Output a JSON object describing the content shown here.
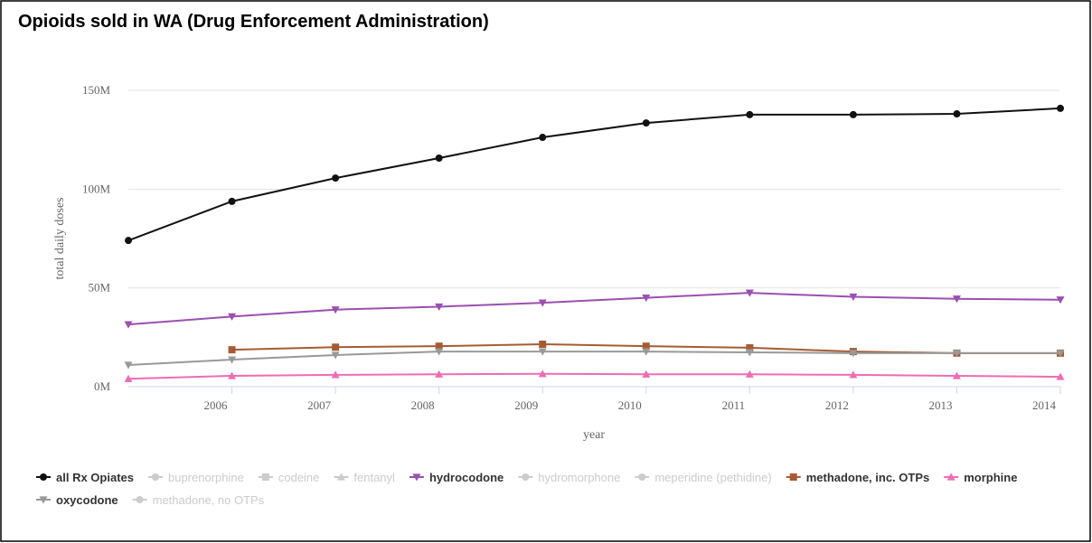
{
  "chart_data": {
    "type": "line",
    "title": "Opioids sold in WA (Drug Enforcement Administration)",
    "x_label": "year",
    "y_label": "total daily doses",
    "x": [
      2005,
      2006,
      2007,
      2008,
      2009,
      2010,
      2011,
      2012,
      2013,
      2014
    ],
    "xlim": [
      2005,
      2014
    ],
    "xticks": [
      2006,
      2007,
      2008,
      2009,
      2010,
      2011,
      2012,
      2013,
      2014
    ],
    "ylim": [
      0,
      150000000
    ],
    "yticks": [
      {
        "value": 0,
        "label": "0M"
      },
      {
        "value": 50000000,
        "label": "50M"
      },
      {
        "value": 100000000,
        "label": "100M"
      },
      {
        "value": 150000000,
        "label": "150M"
      }
    ],
    "grid": true,
    "legend": "bottom",
    "series": [
      {
        "name": "all Rx Opiates",
        "color": "#111111",
        "marker": "circle",
        "visible": true,
        "values": [
          74000000,
          93800000,
          105600000,
          115700000,
          126200000,
          133500000,
          137700000,
          137700000,
          138100000,
          140900000
        ]
      },
      {
        "name": "buprenorphine",
        "color": "#cccccc",
        "marker": "circle",
        "visible": false
      },
      {
        "name": "codeine",
        "color": "#cccccc",
        "marker": "square",
        "visible": false
      },
      {
        "name": "fentanyl",
        "color": "#cccccc",
        "marker": "triangle",
        "visible": false
      },
      {
        "name": "hydrocodone",
        "color": "#9b4fb0",
        "marker": "triangle-down",
        "visible": true,
        "values": [
          31500000,
          35500000,
          39000000,
          40500000,
          42500000,
          45000000,
          47500000,
          45500000,
          44500000,
          44000000
        ]
      },
      {
        "name": "hydromorphone",
        "color": "#cccccc",
        "marker": "circle",
        "visible": false
      },
      {
        "name": "meperidine (pethidine)",
        "color": "#cccccc",
        "marker": "circle",
        "visible": false
      },
      {
        "name": "methadone, inc. OTPs",
        "color": "#a65c32",
        "marker": "square",
        "visible": true,
        "values": [
          null,
          18700000,
          20000000,
          20500000,
          21500000,
          20500000,
          19700000,
          17800000,
          17000000,
          17000000
        ]
      },
      {
        "name": "morphine",
        "color": "#f06cb4",
        "marker": "triangle",
        "visible": true,
        "values": [
          4000000,
          5500000,
          6000000,
          6300000,
          6500000,
          6300000,
          6300000,
          6000000,
          5500000,
          5000000
        ]
      },
      {
        "name": "oxycodone",
        "color": "#999999",
        "marker": "triangle-down",
        "visible": true,
        "values": [
          11000000,
          13700000,
          16000000,
          17800000,
          17800000,
          17800000,
          17400000,
          17000000,
          17000000,
          17000000
        ]
      },
      {
        "name": "methadone, no OTPs",
        "color": "#cccccc",
        "marker": "circle",
        "visible": false
      }
    ]
  }
}
